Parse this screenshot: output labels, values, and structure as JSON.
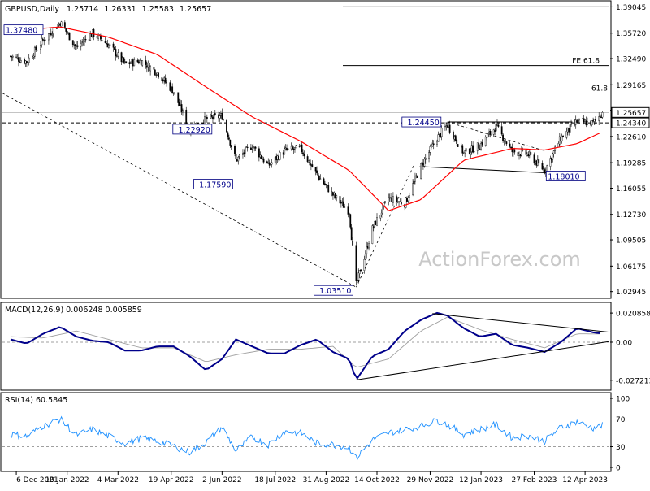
{
  "chart_data": {
    "type": "candlestick",
    "instrument_header": {
      "symbol": "GBPUSD,Daily",
      "ohlc": [
        "1.25714",
        "1.26331",
        "1.25583",
        "1.25657"
      ]
    },
    "watermark": "ActionForex.com",
    "x_ticks": [
      "6 Dec 2021",
      "19 Jan 2022",
      "4 Mar 2022",
      "19 Apr 2022",
      "2 Jun 2022",
      "18 Jul 2022",
      "31 Aug 2022",
      "14 Oct 2022",
      "29 Nov 2022",
      "12 Jan 2023",
      "27 Feb 2023",
      "12 Apr 2023"
    ],
    "price_panel": {
      "y_ticks": [
        "1.39045",
        "1.35720",
        "1.32490",
        "1.29165",
        "1.25940",
        "1.22610",
        "1.19285",
        "1.16055",
        "1.12730",
        "1.09505",
        "1.06175",
        "1.02945"
      ],
      "ylim": [
        1.025,
        1.394
      ],
      "current_price": "1.25657",
      "support_line_label": "1.24340",
      "fib_labels": [
        "FE 61.8",
        "61.8"
      ],
      "fib_levels": [
        1.316,
        1.281
      ],
      "top_level": 1.3905,
      "support_level": 1.2434,
      "annotations": [
        {
          "text": "1.37480",
          "date": "2022-01-13",
          "price": 1.3748
        },
        {
          "text": "1.22920",
          "date": "2022-05-27",
          "price": 1.2292
        },
        {
          "text": "1.17590",
          "date": "2022-06-14",
          "price": 1.1759
        },
        {
          "text": "1.03510",
          "date": "2022-09-26",
          "price": 1.0351
        },
        {
          "text": "1.24450",
          "date": "2022-12-14",
          "price": 1.2445
        },
        {
          "text": "1.18010",
          "date": "2023-03-08",
          "price": 1.1801
        }
      ],
      "series": [
        {
          "date": "2021-12-01",
          "price": 1.328
        },
        {
          "date": "2021-12-15",
          "price": 1.321
        },
        {
          "date": "2021-12-29",
          "price": 1.348
        },
        {
          "date": "2022-01-13",
          "price": 1.371
        },
        {
          "date": "2022-01-27",
          "price": 1.339
        },
        {
          "date": "2022-02-10",
          "price": 1.357
        },
        {
          "date": "2022-02-24",
          "price": 1.342
        },
        {
          "date": "2022-03-10",
          "price": 1.318
        },
        {
          "date": "2022-03-24",
          "price": 1.322
        },
        {
          "date": "2022-04-07",
          "price": 1.307
        },
        {
          "date": "2022-04-21",
          "price": 1.283
        },
        {
          "date": "2022-05-05",
          "price": 1.235
        },
        {
          "date": "2022-05-19",
          "price": 1.248
        },
        {
          "date": "2022-06-02",
          "price": 1.252
        },
        {
          "date": "2022-06-14",
          "price": 1.196
        },
        {
          "date": "2022-06-28",
          "price": 1.215
        },
        {
          "date": "2022-07-12",
          "price": 1.189
        },
        {
          "date": "2022-07-26",
          "price": 1.208
        },
        {
          "date": "2022-08-09",
          "price": 1.211
        },
        {
          "date": "2022-08-23",
          "price": 1.178
        },
        {
          "date": "2022-09-06",
          "price": 1.152
        },
        {
          "date": "2022-09-20",
          "price": 1.131
        },
        {
          "date": "2022-09-26",
          "price": 1.038
        },
        {
          "date": "2022-10-10",
          "price": 1.109
        },
        {
          "date": "2022-10-24",
          "price": 1.148
        },
        {
          "date": "2022-11-07",
          "price": 1.141
        },
        {
          "date": "2022-11-21",
          "price": 1.188
        },
        {
          "date": "2022-12-05",
          "price": 1.224
        },
        {
          "date": "2022-12-14",
          "price": 1.241
        },
        {
          "date": "2022-12-28",
          "price": 1.205
        },
        {
          "date": "2023-01-11",
          "price": 1.215
        },
        {
          "date": "2023-01-25",
          "price": 1.239
        },
        {
          "date": "2023-02-08",
          "price": 1.207
        },
        {
          "date": "2023-02-22",
          "price": 1.203
        },
        {
          "date": "2023-03-08",
          "price": 1.183
        },
        {
          "date": "2023-03-22",
          "price": 1.224
        },
        {
          "date": "2023-04-05",
          "price": 1.245
        },
        {
          "date": "2023-04-19",
          "price": 1.243
        },
        {
          "date": "2023-04-27",
          "price": 1.2566
        }
      ],
      "ma": [
        {
          "date": "2021-12-01",
          "price": 1.36
        },
        {
          "date": "2022-01-13",
          "price": 1.365
        },
        {
          "date": "2022-02-24",
          "price": 1.352
        },
        {
          "date": "2022-04-07",
          "price": 1.33
        },
        {
          "date": "2022-05-19",
          "price": 1.289
        },
        {
          "date": "2022-06-28",
          "price": 1.251
        },
        {
          "date": "2022-08-09",
          "price": 1.22
        },
        {
          "date": "2022-09-20",
          "price": 1.183
        },
        {
          "date": "2022-10-24",
          "price": 1.132
        },
        {
          "date": "2022-11-21",
          "price": 1.146
        },
        {
          "date": "2022-12-28",
          "price": 1.196
        },
        {
          "date": "2023-02-08",
          "price": 1.211
        },
        {
          "date": "2023-03-08",
          "price": 1.209
        },
        {
          "date": "2023-04-05",
          "price": 1.217
        },
        {
          "date": "2023-04-27",
          "price": 1.232
        }
      ]
    },
    "macd_panel": {
      "title": "MACD(12,26,9) 0.006248 0.005859",
      "y_ticks": [
        "0.020858",
        "0.00",
        "-0.027213"
      ],
      "ylim": [
        -0.032,
        0.025
      ],
      "macd": [
        {
          "date": "2021-12-01",
          "value": 0.002
        },
        {
          "date": "2021-12-15",
          "value": -0.001
        },
        {
          "date": "2021-12-29",
          "value": 0.006
        },
        {
          "date": "2022-01-13",
          "value": 0.011
        },
        {
          "date": "2022-01-27",
          "value": 0.004
        },
        {
          "date": "2022-02-10",
          "value": 0.001
        },
        {
          "date": "2022-02-24",
          "value": 0.0
        },
        {
          "date": "2022-03-10",
          "value": -0.006
        },
        {
          "date": "2022-03-24",
          "value": -0.006
        },
        {
          "date": "2022-04-07",
          "value": -0.003
        },
        {
          "date": "2022-04-21",
          "value": -0.003
        },
        {
          "date": "2022-05-05",
          "value": -0.01
        },
        {
          "date": "2022-05-19",
          "value": -0.02
        },
        {
          "date": "2022-06-02",
          "value": -0.012
        },
        {
          "date": "2022-06-14",
          "value": 0.002
        },
        {
          "date": "2022-06-28",
          "value": -0.003
        },
        {
          "date": "2022-07-12",
          "value": -0.008
        },
        {
          "date": "2022-07-26",
          "value": -0.008
        },
        {
          "date": "2022-08-09",
          "value": -0.002
        },
        {
          "date": "2022-08-23",
          "value": 0.002
        },
        {
          "date": "2022-09-06",
          "value": -0.007
        },
        {
          "date": "2022-09-20",
          "value": -0.012
        },
        {
          "date": "2022-09-26",
          "value": -0.027
        },
        {
          "date": "2022-10-10",
          "value": -0.01
        },
        {
          "date": "2022-10-24",
          "value": -0.005
        },
        {
          "date": "2022-11-07",
          "value": 0.008
        },
        {
          "date": "2022-11-21",
          "value": 0.016
        },
        {
          "date": "2022-12-05",
          "value": 0.021
        },
        {
          "date": "2022-12-14",
          "value": 0.019
        },
        {
          "date": "2022-12-28",
          "value": 0.01
        },
        {
          "date": "2023-01-11",
          "value": 0.004
        },
        {
          "date": "2023-01-25",
          "value": 0.006
        },
        {
          "date": "2023-02-08",
          "value": -0.002
        },
        {
          "date": "2023-02-22",
          "value": -0.004
        },
        {
          "date": "2023-03-08",
          "value": -0.007
        },
        {
          "date": "2023-03-22",
          "value": 0.0
        },
        {
          "date": "2023-04-05",
          "value": 0.01
        },
        {
          "date": "2023-04-19",
          "value": 0.007
        },
        {
          "date": "2023-04-27",
          "value": 0.0062
        }
      ],
      "signal": [
        {
          "date": "2021-12-01",
          "value": 0.004
        },
        {
          "date": "2021-12-29",
          "value": 0.003
        },
        {
          "date": "2022-01-27",
          "value": 0.008
        },
        {
          "date": "2022-02-24",
          "value": 0.002
        },
        {
          "date": "2022-03-24",
          "value": -0.004
        },
        {
          "date": "2022-04-21",
          "value": -0.004
        },
        {
          "date": "2022-05-19",
          "value": -0.014
        },
        {
          "date": "2022-06-14",
          "value": -0.009
        },
        {
          "date": "2022-07-12",
          "value": -0.005
        },
        {
          "date": "2022-08-09",
          "value": -0.005
        },
        {
          "date": "2022-09-06",
          "value": -0.003
        },
        {
          "date": "2022-09-26",
          "value": -0.018
        },
        {
          "date": "2022-10-24",
          "value": -0.012
        },
        {
          "date": "2022-11-21",
          "value": 0.008
        },
        {
          "date": "2022-12-14",
          "value": 0.018
        },
        {
          "date": "2023-01-11",
          "value": 0.009
        },
        {
          "date": "2023-02-08",
          "value": 0.002
        },
        {
          "date": "2023-03-08",
          "value": -0.004
        },
        {
          "date": "2023-04-05",
          "value": 0.006
        },
        {
          "date": "2023-04-27",
          "value": 0.0059
        }
      ]
    },
    "rsi_panel": {
      "title": "RSI(14) 60.5845",
      "y_ticks": [
        "100",
        "70",
        "30",
        "0"
      ],
      "ylim": [
        0,
        100
      ],
      "levels": [
        70,
        30
      ],
      "rsi": [
        {
          "date": "2021-12-01",
          "value": 48
        },
        {
          "date": "2021-12-15",
          "value": 45
        },
        {
          "date": "2021-12-29",
          "value": 60
        },
        {
          "date": "2022-01-13",
          "value": 70
        },
        {
          "date": "2022-01-27",
          "value": 47
        },
        {
          "date": "2022-02-10",
          "value": 55
        },
        {
          "date": "2022-02-24",
          "value": 45
        },
        {
          "date": "2022-03-10",
          "value": 35
        },
        {
          "date": "2022-03-24",
          "value": 42
        },
        {
          "date": "2022-04-07",
          "value": 38
        },
        {
          "date": "2022-04-21",
          "value": 31
        },
        {
          "date": "2022-05-05",
          "value": 22
        },
        {
          "date": "2022-05-19",
          "value": 36
        },
        {
          "date": "2022-06-02",
          "value": 58
        },
        {
          "date": "2022-06-14",
          "value": 24
        },
        {
          "date": "2022-06-28",
          "value": 44
        },
        {
          "date": "2022-07-12",
          "value": 33
        },
        {
          "date": "2022-07-26",
          "value": 52
        },
        {
          "date": "2022-08-09",
          "value": 50
        },
        {
          "date": "2022-08-23",
          "value": 35
        },
        {
          "date": "2022-09-06",
          "value": 33
        },
        {
          "date": "2022-09-20",
          "value": 29
        },
        {
          "date": "2022-09-26",
          "value": 13
        },
        {
          "date": "2022-10-10",
          "value": 40
        },
        {
          "date": "2022-10-24",
          "value": 50
        },
        {
          "date": "2022-11-07",
          "value": 55
        },
        {
          "date": "2022-11-21",
          "value": 60
        },
        {
          "date": "2022-12-05",
          "value": 68
        },
        {
          "date": "2022-12-14",
          "value": 62
        },
        {
          "date": "2022-12-28",
          "value": 48
        },
        {
          "date": "2023-01-11",
          "value": 55
        },
        {
          "date": "2023-01-25",
          "value": 62
        },
        {
          "date": "2023-02-08",
          "value": 43
        },
        {
          "date": "2023-02-22",
          "value": 46
        },
        {
          "date": "2023-03-08",
          "value": 38
        },
        {
          "date": "2023-03-22",
          "value": 58
        },
        {
          "date": "2023-04-05",
          "value": 66
        },
        {
          "date": "2023-04-19",
          "value": 57
        },
        {
          "date": "2023-04-27",
          "value": 60.6
        }
      ]
    },
    "colors": {
      "candle_up": "#ffffff",
      "candle_down": "#000000",
      "ma": "#ff0000",
      "macd": "#00008b",
      "signal": "#a0a0a0",
      "rsi": "#1e90ff",
      "annotation_text": "#00008b",
      "watermark": "#c8c8c8"
    }
  }
}
